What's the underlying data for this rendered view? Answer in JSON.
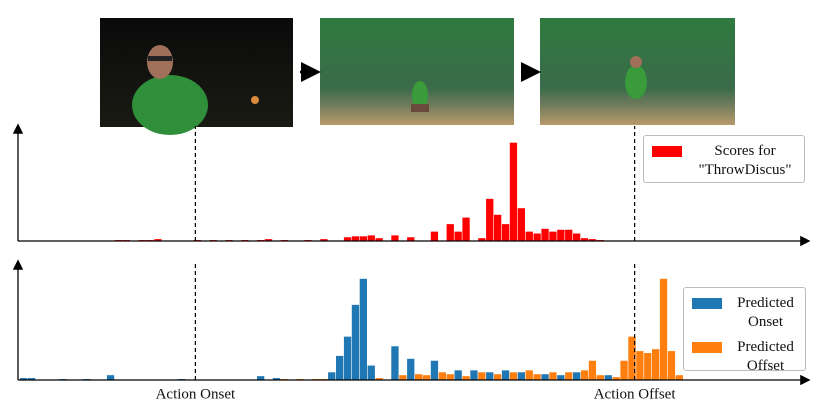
{
  "chart_data": [
    {
      "type": "bar",
      "legend": "upper right",
      "ylim": [
        0,
        110
      ],
      "categories": [
        null,
        null,
        null,
        null,
        null,
        null,
        null,
        null,
        null,
        null,
        null,
        null,
        null,
        null,
        null,
        null,
        null,
        null,
        null,
        null,
        null,
        null,
        null,
        null,
        null,
        null,
        null,
        null,
        null,
        null,
        null,
        null,
        null,
        null,
        null,
        null,
        null,
        null,
        null,
        null,
        null,
        null,
        null,
        null,
        null,
        null,
        null,
        null,
        null,
        null,
        null,
        null,
        null,
        null,
        null,
        null,
        null,
        null,
        null,
        null,
        null,
        null,
        null,
        null,
        null,
        null,
        null,
        null,
        null,
        null,
        null,
        null,
        null,
        null,
        null,
        null,
        null,
        null,
        null,
        null,
        null,
        null,
        null,
        null,
        null,
        null,
        null,
        null,
        null,
        null,
        null,
        null,
        null,
        null,
        null,
        null,
        null,
        null,
        null,
        null
      ],
      "series": [
        {
          "name": "Scores for \"ThrowDiscus\"",
          "color": "#ff0000",
          "values": [
            0,
            0,
            0,
            0,
            0,
            0,
            0,
            0,
            0,
            0,
            0,
            0,
            1,
            1,
            0,
            1,
            1,
            2,
            0,
            0,
            0,
            0,
            1,
            0,
            1,
            0,
            1,
            0,
            1,
            0,
            1,
            2,
            0,
            1,
            0,
            0,
            1,
            0,
            2,
            0,
            0,
            4,
            5,
            5,
            6,
            3,
            0,
            6,
            0,
            4,
            0,
            0,
            10,
            0,
            18,
            10,
            25,
            0,
            3,
            45,
            28,
            18,
            105,
            35,
            10,
            8,
            13,
            10,
            12,
            12,
            8,
            3,
            2,
            1,
            0,
            0,
            0,
            0,
            0,
            0,
            0,
            0,
            0,
            0,
            0,
            0,
            0,
            0,
            0,
            0,
            0,
            0,
            0,
            0,
            0,
            0,
            0,
            0,
            0,
            0
          ]
        }
      ]
    },
    {
      "type": "bar",
      "legend": "upper right",
      "ylim": [
        0,
        110
      ],
      "categories": [
        null,
        null,
        null,
        null,
        null,
        null,
        null,
        null,
        null,
        null,
        null,
        null,
        null,
        null,
        null,
        null,
        null,
        null,
        null,
        null,
        null,
        null,
        null,
        null,
        null,
        null,
        null,
        null,
        null,
        null,
        null,
        null,
        null,
        null,
        null,
        null,
        null,
        null,
        null,
        null,
        null,
        null,
        null,
        null,
        null,
        null,
        null,
        null,
        null,
        null,
        null,
        null,
        null,
        null,
        null,
        null,
        null,
        null,
        null,
        null,
        null,
        null,
        null,
        null,
        null,
        null,
        null,
        null,
        null,
        null,
        null,
        null,
        null,
        null,
        null,
        null,
        null,
        null,
        null,
        null,
        null,
        null,
        null,
        null,
        null,
        null,
        null,
        null,
        null,
        null,
        null,
        null,
        null,
        null,
        null,
        null,
        null,
        null,
        null,
        null
      ],
      "series": [
        {
          "name": "Predicted Onset",
          "color": "#1f77b4",
          "values": [
            2,
            2,
            0,
            0,
            0,
            1,
            0,
            0,
            1,
            0,
            0,
            5,
            0,
            0,
            0,
            0,
            0,
            0,
            0,
            0,
            1,
            0,
            0,
            0,
            0,
            0,
            0,
            0,
            0,
            0,
            4,
            0,
            2,
            0,
            0,
            0,
            0,
            0,
            0,
            8,
            25,
            45,
            78,
            105,
            15,
            0,
            0,
            35,
            0,
            22,
            5,
            0,
            20,
            0,
            0,
            10,
            0,
            10,
            0,
            8,
            0,
            10,
            0,
            8,
            0,
            0,
            6,
            0,
            5,
            0,
            8,
            0,
            3,
            0,
            5,
            0,
            0,
            0,
            0,
            0,
            0,
            0,
            0,
            0,
            0,
            0,
            0,
            0,
            0,
            0,
            0,
            0,
            0,
            0,
            0,
            0,
            0,
            0,
            0,
            0
          ]
        },
        {
          "name": "Predicted Offset",
          "color": "#ff7f0e",
          "values": [
            0,
            0,
            0,
            0,
            0,
            0,
            0,
            0,
            0,
            0,
            0,
            0,
            0,
            0,
            0,
            0,
            0,
            0,
            0,
            0,
            0,
            0,
            0,
            0,
            0,
            0,
            0,
            0,
            0,
            0,
            0,
            0,
            0,
            1,
            0,
            1,
            0,
            1,
            1,
            0,
            0,
            0,
            0,
            0,
            0,
            2,
            0,
            0,
            5,
            0,
            6,
            5,
            0,
            8,
            6,
            0,
            4,
            0,
            8,
            0,
            6,
            0,
            8,
            0,
            10,
            6,
            0,
            8,
            0,
            8,
            0,
            10,
            20,
            5,
            0,
            3,
            20,
            45,
            30,
            28,
            32,
            105,
            30,
            5,
            0,
            0,
            0,
            0,
            0,
            0,
            0,
            0,
            0,
            0,
            0,
            0,
            0,
            0,
            0,
            0
          ]
        }
      ]
    }
  ],
  "annotations": [
    {
      "text": "Action Onset",
      "x": 22.2
    },
    {
      "text": "Action Offset",
      "x": 77.8
    }
  ]
}
